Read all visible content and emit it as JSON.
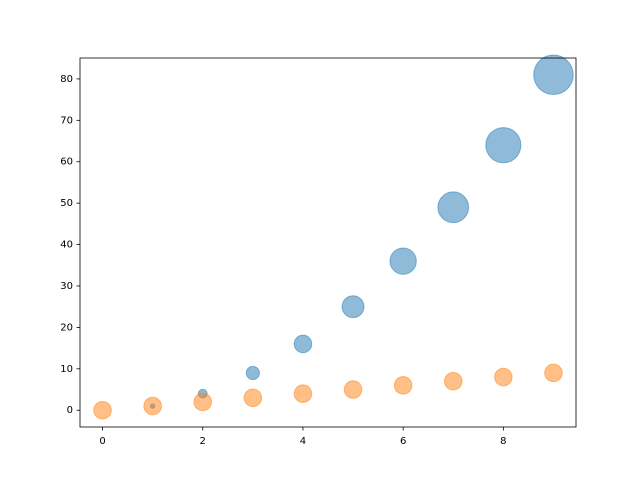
{
  "chart_data": {
    "type": "scatter",
    "x": [
      0,
      1,
      2,
      3,
      4,
      5,
      6,
      7,
      8,
      9
    ],
    "series": [
      {
        "color": "#1f77b4",
        "alpha": 0.5,
        "values": [
          0,
          1,
          4,
          9,
          16,
          25,
          36,
          49,
          64,
          81
        ],
        "sizes": [
          0,
          10,
          40,
          90,
          160,
          250,
          360,
          490,
          640,
          810
        ]
      },
      {
        "color": "#ff7f0e",
        "alpha": 0.5,
        "values": [
          0,
          1,
          2,
          3,
          4,
          5,
          6,
          7,
          8,
          9
        ],
        "sizes": [
          160,
          160,
          160,
          160,
          160,
          160,
          160,
          160,
          160,
          160
        ]
      }
    ],
    "xlim": [
      -0.45,
      9.45
    ],
    "xticks": [
      0,
      2,
      4,
      6,
      8
    ],
    "ylim": [
      -4.05,
      85.05
    ],
    "yticks": [
      0,
      10,
      20,
      30,
      40,
      50,
      60,
      70,
      80
    ]
  }
}
